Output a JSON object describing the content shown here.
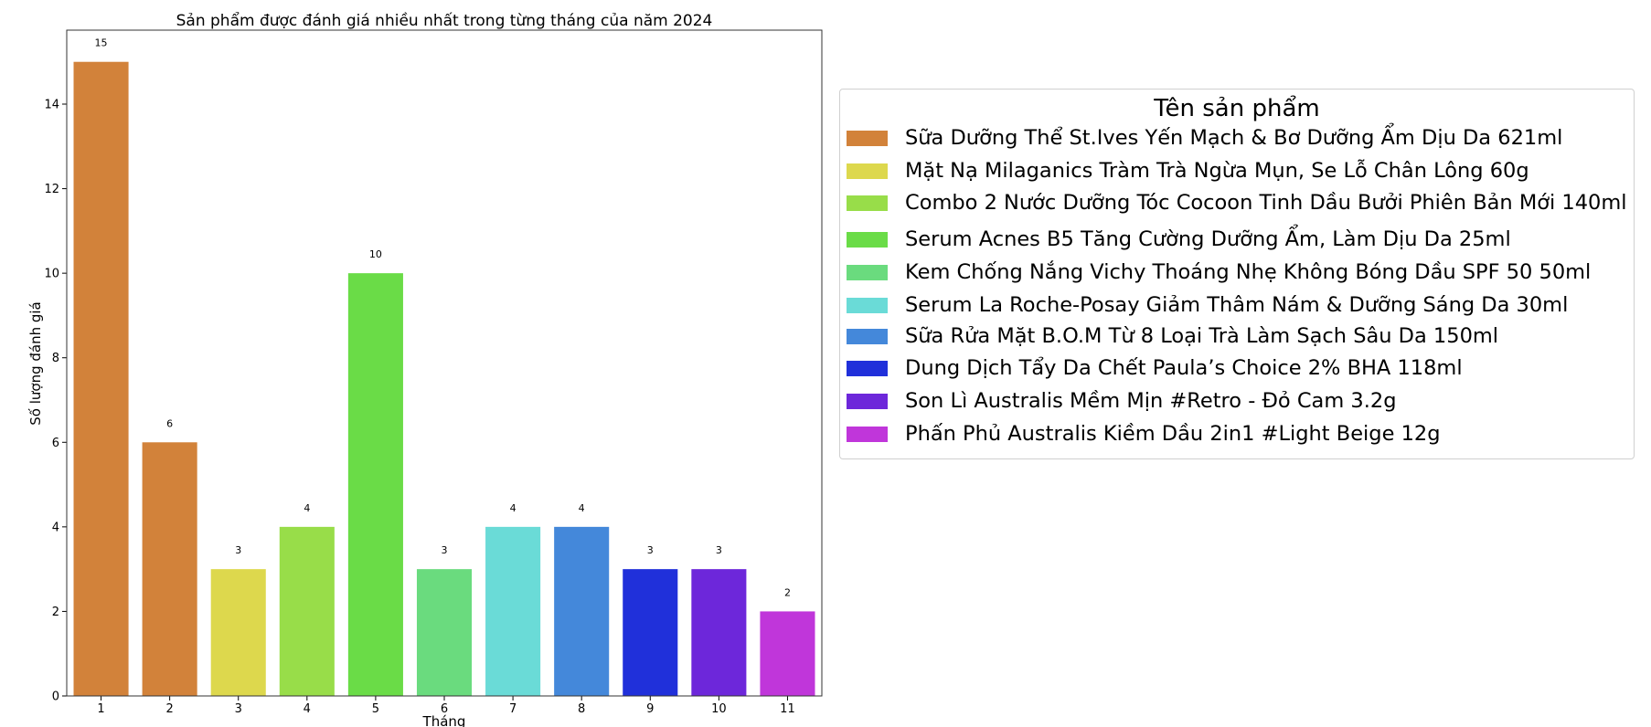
{
  "chart_data": {
    "type": "bar",
    "title": "Sản phẩm được đánh giá nhiều nhất trong từng tháng của năm 2024",
    "xlabel": "Tháng",
    "ylabel": "Số lượng đánh giá",
    "categories": [
      "1",
      "2",
      "3",
      "4",
      "5",
      "6",
      "7",
      "8",
      "9",
      "10",
      "11"
    ],
    "values": [
      15,
      6,
      3,
      4,
      10,
      3,
      4,
      4,
      3,
      3,
      2
    ],
    "bar_products": [
      0,
      0,
      1,
      2,
      3,
      4,
      5,
      6,
      7,
      8,
      9
    ],
    "bar_colors": [
      "#D2823A",
      "#D2823A",
      "#DDD84D",
      "#98DD49",
      "#6ADC47",
      "#6ADB7E",
      "#6ADBD7",
      "#4488DA",
      "#2030DA",
      "#6D27DA",
      "#C036DA"
    ],
    "ylim": [
      0,
      15.75
    ],
    "yticks": [
      0,
      2,
      4,
      6,
      8,
      10,
      12,
      14
    ],
    "grid": false,
    "legend": {
      "title": "Tên sản phẩm",
      "placement": "right",
      "entries": [
        {
          "label": "Sữa Dưỡng Thể St.Ives Yến Mạch & Bơ Dưỡng Ẩm Dịu Da 621ml",
          "color": "#D2823A"
        },
        {
          "label": "Mặt Nạ Milaganics Tràm Trà Ngừa Mụn, Se Lỗ Chân Lông 60g",
          "color": "#DDD84D"
        },
        {
          "label": "Combo 2 Nước Dưỡng Tóc Cocoon Tinh Dầu Bưởi Phiên Bản Mới 140ml",
          "color": "#98DD49"
        },
        {
          "label": "Serum Acnes B5 Tăng Cường Dưỡng Ẩm, Làm Dịu Da 25ml",
          "color": "#6ADC47"
        },
        {
          "label": "Kem Chống Nắng Vichy Thoáng Nhẹ Không Bóng Dầu SPF 50 50ml",
          "color": "#6ADB7E"
        },
        {
          "label": "Serum La Roche-Posay Giảm Thâm Nám & Dưỡng Sáng Da 30ml",
          "color": "#6ADBD7"
        },
        {
          "label": "Sữa Rửa Mặt B.O.M Từ 8 Loại Trà Làm Sạch Sâu Da 150ml",
          "color": "#4488DA"
        },
        {
          "label": "Dung Dịch Tẩy Da Chết Paula’s Choice 2% BHA 118ml",
          "color": "#2030DA"
        },
        {
          "label": "Son Lì Australis Mềm Mịn #Retro - Đỏ Cam 3.2g",
          "color": "#6D27DA"
        },
        {
          "label": "Phấn Phủ Australis Kiềm Dầu 2in1 #Light Beige 12g",
          "color": "#C036DA"
        }
      ]
    }
  }
}
